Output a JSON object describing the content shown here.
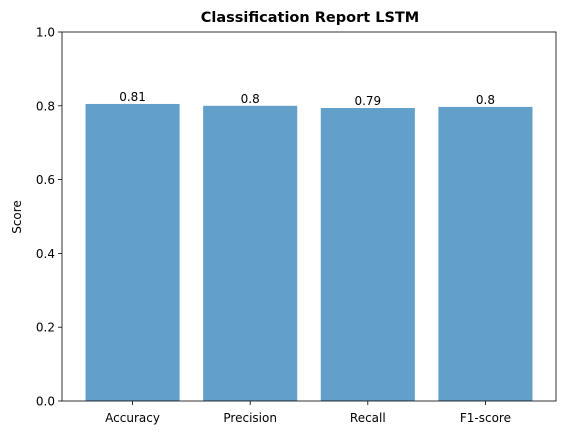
{
  "chart_data": {
    "type": "bar",
    "title": "Classification Report LSTM",
    "xlabel": "",
    "ylabel": "Score",
    "categories": [
      "Accuracy",
      "Precision",
      "Recall",
      "F1-score"
    ],
    "values": [
      0.805,
      0.8,
      0.794,
      0.797
    ],
    "data_labels": [
      "0.81",
      "0.8",
      "0.79",
      "0.8"
    ],
    "ylim": [
      0,
      1.0
    ],
    "yticks": [
      0.0,
      0.2,
      0.4,
      0.6,
      0.8,
      1.0
    ],
    "ytick_labels": [
      "0.0",
      "0.2",
      "0.4",
      "0.6",
      "0.8",
      "1.0"
    ],
    "bar_color": "#1f77b4",
    "bar_alpha": 0.7,
    "grid": false,
    "legend": false
  }
}
